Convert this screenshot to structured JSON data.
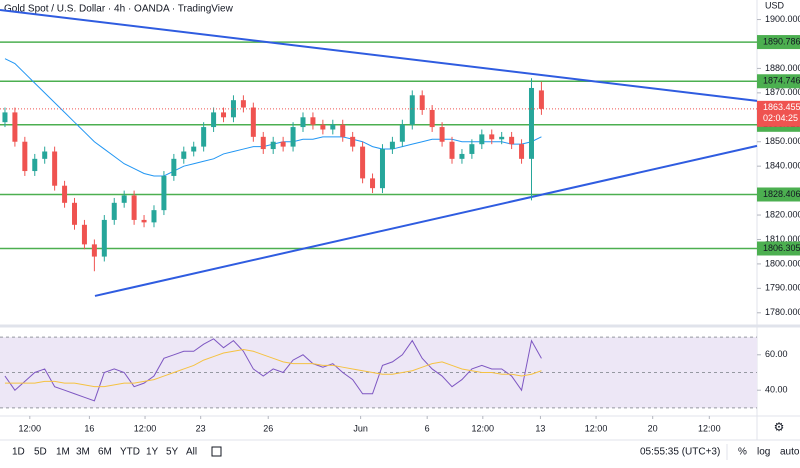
{
  "chart_data": [
    {
      "type": "candlestick",
      "title": "Gold Spot / U.S. Dollar · 4h · OANDA · TradingView",
      "currency": "USD",
      "open": [
        1858,
        1862,
        1850,
        1838,
        1843,
        1846,
        1832,
        1825,
        1816,
        1808,
        1803,
        1818,
        1825,
        1828,
        1818,
        1817,
        1822,
        1836,
        1843,
        1846,
        1848,
        1856,
        1862,
        1860,
        1867,
        1864,
        1852,
        1847,
        1850,
        1848,
        1856,
        1860,
        1857,
        1855,
        1857,
        1852,
        1848,
        1835,
        1831,
        1847,
        1850,
        1857,
        1869,
        1863,
        1856,
        1850,
        1843,
        1845,
        1849,
        1853,
        1851,
        1852,
        1849,
        1843,
        1871
      ],
      "high": [
        1864,
        1864,
        1852,
        1845,
        1848,
        1848,
        1834,
        1827,
        1818,
        1810,
        1820,
        1827,
        1830,
        1830,
        1820,
        1824,
        1838,
        1845,
        1848,
        1850,
        1858,
        1864,
        1864,
        1869,
        1869,
        1866,
        1854,
        1852,
        1852,
        1858,
        1862,
        1862,
        1859,
        1859,
        1859,
        1854,
        1850,
        1837,
        1849,
        1852,
        1859,
        1871,
        1871,
        1865,
        1858,
        1852,
        1847,
        1851,
        1855,
        1855,
        1854,
        1854,
        1851,
        1876,
        1874.5
      ],
      "low": [
        1856,
        1848,
        1836,
        1836,
        1841,
        1830,
        1823,
        1814,
        1806,
        1797,
        1801,
        1816,
        1823,
        1816,
        1815,
        1815,
        1820,
        1834,
        1841,
        1844,
        1846,
        1854,
        1858,
        1858,
        1862,
        1850,
        1845,
        1845,
        1846,
        1846,
        1854,
        1855,
        1853,
        1853,
        1850,
        1846,
        1833,
        1829,
        1829,
        1845,
        1848,
        1855,
        1861,
        1854,
        1848,
        1841,
        1841,
        1843,
        1847,
        1849,
        1849,
        1847,
        1841,
        1826,
        1861
      ],
      "close": [
        1862,
        1850,
        1838,
        1843,
        1846,
        1832,
        1825,
        1816,
        1808,
        1803,
        1818,
        1825,
        1828,
        1818,
        1817,
        1822,
        1836,
        1843,
        1846,
        1848,
        1856,
        1862,
        1860,
        1867,
        1864,
        1852,
        1847,
        1850,
        1848,
        1856,
        1860,
        1857,
        1855,
        1857,
        1852,
        1848,
        1835,
        1831,
        1847,
        1850,
        1857,
        1869,
        1863,
        1856,
        1850,
        1843,
        1845,
        1849,
        1853,
        1851,
        1852,
        1849,
        1843,
        1872,
        1863.455
      ],
      "up_color": "#26a69a",
      "down_color": "#ef5350",
      "moving_average": {
        "color": "#2196f3",
        "values": [
          1884,
          1882,
          1878,
          1874,
          1870,
          1866,
          1862,
          1858,
          1854,
          1850,
          1847,
          1844,
          1841,
          1839,
          1837,
          1836,
          1836,
          1838,
          1840,
          1841,
          1842,
          1843,
          1845,
          1846,
          1847,
          1848,
          1848,
          1849,
          1850,
          1850,
          1851,
          1851,
          1852,
          1852,
          1852,
          1851,
          1850,
          1848,
          1847,
          1847,
          1848,
          1849,
          1850,
          1851,
          1851,
          1851,
          1850,
          1850,
          1850,
          1850,
          1850,
          1849,
          1849,
          1850,
          1852
        ]
      },
      "trend_color": "#2f5ce0",
      "trend_lines": [
        {
          "x": [
            -0.5,
            75.7
          ],
          "values": [
            1903.9,
            1866.7
          ]
        },
        {
          "x": [
            9.06,
            75.7
          ],
          "values": [
            1786.9,
            1848.3
          ]
        }
      ],
      "levels": {
        "color": "#4caf50",
        "values": [
          1890.786,
          1874.746,
          1856.923,
          1828.406,
          1806.305
        ]
      },
      "last_price": 1863.455,
      "countdown": "02:04:25",
      "xlim": [
        -0.5,
        75.7
      ],
      "ylim": [
        1775,
        1908
      ],
      "yticks": [
        {
          "value": 1900,
          "label": "1900.000"
        },
        {
          "value": 1880,
          "label": "1880.000"
        },
        {
          "value": 1870,
          "label": "1870.000"
        },
        {
          "value": 1850,
          "label": "1850.000"
        },
        {
          "value": 1840,
          "label": "1840.000"
        },
        {
          "value": 1820,
          "label": "1820.000"
        },
        {
          "value": 1810,
          "label": "1810.000"
        },
        {
          "value": 1800,
          "label": "1800.000"
        },
        {
          "value": 1790,
          "label": "1790.000"
        },
        {
          "value": 1780,
          "label": "1780.000"
        }
      ],
      "xticks": [
        {
          "value": 2.5,
          "label": "12:00"
        },
        {
          "value": 8.5,
          "label": "16"
        },
        {
          "value": 14.1,
          "label": "12:00"
        },
        {
          "value": 19.7,
          "label": "23"
        },
        {
          "value": 26.5,
          "label": "26"
        },
        {
          "value": 35.8,
          "label": "Jun"
        },
        {
          "value": 42.5,
          "label": "6"
        },
        {
          "value": 48.1,
          "label": "12:00"
        },
        {
          "value": 53.9,
          "label": "13"
        },
        {
          "value": 59.5,
          "label": "12:00"
        },
        {
          "value": 65.2,
          "label": "20"
        },
        {
          "value": 70.9,
          "label": "12:00"
        }
      ]
    },
    {
      "type": "line",
      "series": [
        {
          "color": "#7e57c2",
          "values": [
            48,
            40,
            45,
            50,
            52,
            42,
            40,
            38,
            36,
            34,
            50,
            52,
            50,
            42,
            44,
            48,
            58,
            60,
            62,
            62,
            66,
            69,
            64,
            68,
            62,
            52,
            48,
            52,
            50,
            57,
            60,
            55,
            53,
            55,
            50,
            46,
            38,
            38,
            54,
            56,
            60,
            68,
            58,
            52,
            48,
            42,
            46,
            52,
            54,
            52,
            52,
            48,
            40,
            68,
            58
          ]
        },
        {
          "color": "#f5c242",
          "values": [
            44,
            44,
            44,
            44,
            45,
            45,
            44,
            44,
            43,
            42,
            42,
            43,
            44,
            44,
            45,
            46,
            48,
            50,
            52,
            54,
            57,
            59,
            61,
            62,
            63,
            62,
            60,
            58,
            56,
            55,
            55,
            55,
            54,
            54,
            53,
            52,
            51,
            50,
            49,
            49,
            50,
            51,
            53,
            55,
            56,
            54,
            52,
            51,
            50,
            50,
            49,
            49,
            48,
            49,
            51
          ]
        }
      ],
      "band": [
        30,
        70
      ],
      "midline": 50,
      "ylim": [
        26,
        74
      ],
      "yticks": [
        {
          "value": 60,
          "label": "60.00"
        },
        {
          "value": 40,
          "label": "40.00"
        }
      ]
    }
  ],
  "toolbar": {
    "ranges": [
      "1D",
      "5D",
      "1M",
      "3M",
      "6M",
      "YTD",
      "1Y",
      "5Y",
      "All"
    ],
    "clock": "05:55:35 (UTC+3)",
    "options": [
      "%",
      "log",
      "auto"
    ]
  }
}
